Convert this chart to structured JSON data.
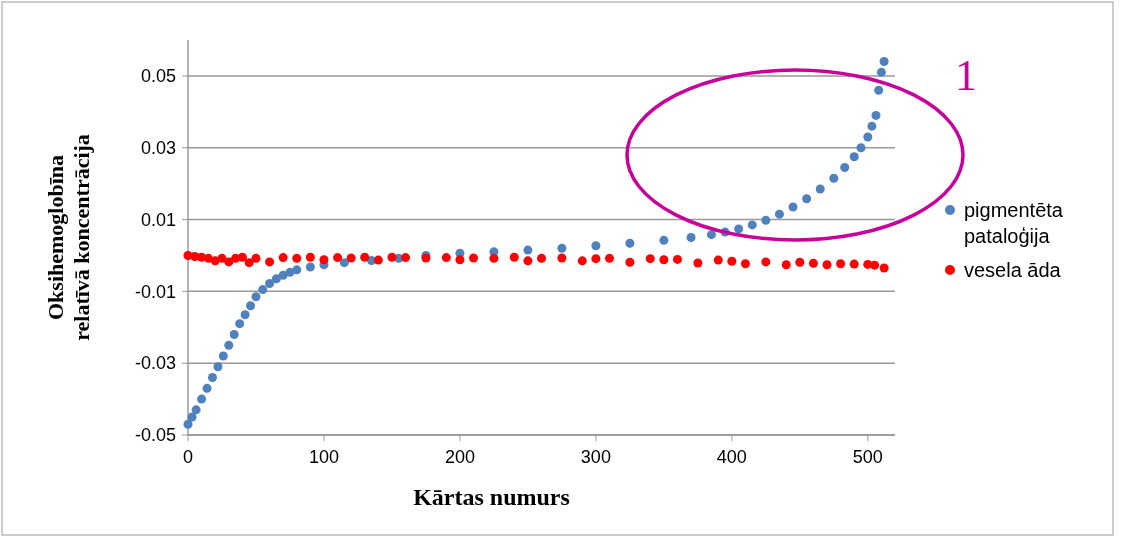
{
  "chart_data": {
    "type": "scatter",
    "xlabel": "Kārtas numurs",
    "ylabel": "Oksihemoglobīna relatīvā koncentrācija",
    "xlim": [
      0,
      520
    ],
    "ylim": [
      -0.05,
      0.06
    ],
    "xticks": [
      0,
      100,
      200,
      300,
      400,
      500
    ],
    "yticks": [
      0.05,
      0.03,
      0.01,
      -0.01,
      -0.03,
      -0.05
    ],
    "grid": "y",
    "legend": "right",
    "marker": "circle",
    "annotations": [
      "1"
    ],
    "series": [
      {
        "name": "pigmentēta pataloģija",
        "color": "#4f81bd",
        "x": [
          0,
          3,
          6,
          10,
          14,
          18,
          22,
          26,
          30,
          34,
          38,
          42,
          46,
          50,
          55,
          60,
          65,
          70,
          75,
          80,
          90,
          100,
          115,
          135,
          155,
          175,
          200,
          225,
          250,
          275,
          300,
          325,
          350,
          370,
          385,
          395,
          405,
          415,
          425,
          435,
          445,
          455,
          465,
          475,
          483,
          490,
          495,
          500,
          503,
          506,
          508,
          510,
          512
        ],
        "values": [
          -0.047,
          -0.045,
          -0.043,
          -0.04,
          -0.037,
          -0.034,
          -0.031,
          -0.028,
          -0.025,
          -0.022,
          -0.019,
          -0.0165,
          -0.014,
          -0.0115,
          -0.0095,
          -0.0078,
          -0.0065,
          -0.0055,
          -0.0047,
          -0.004,
          -0.0032,
          -0.0026,
          -0.002,
          -0.0014,
          -0.0008,
          0,
          0.0006,
          0.001,
          0.0015,
          0.002,
          0.0027,
          0.0034,
          0.0042,
          0.005,
          0.0058,
          0.0065,
          0.0074,
          0.0085,
          0.0098,
          0.0115,
          0.0135,
          0.0158,
          0.0185,
          0.0215,
          0.0245,
          0.0275,
          0.03,
          0.033,
          0.036,
          0.039,
          0.046,
          0.051,
          0.054
        ]
      },
      {
        "name": "vesela āda",
        "color": "#ff0000",
        "x": [
          0,
          5,
          10,
          15,
          20,
          25,
          30,
          35,
          40,
          45,
          50,
          60,
          70,
          80,
          90,
          100,
          110,
          120,
          130,
          140,
          150,
          160,
          175,
          190,
          200,
          210,
          225,
          240,
          250,
          260,
          275,
          290,
          300,
          310,
          325,
          340,
          350,
          360,
          375,
          390,
          400,
          410,
          425,
          440,
          450,
          460,
          470,
          480,
          490,
          500,
          505,
          512
        ],
        "values": [
          0,
          -0.0003,
          -0.0005,
          -0.0008,
          -0.0015,
          -0.0008,
          -0.0018,
          -0.0008,
          -0.0005,
          -0.002,
          -0.0008,
          -0.0018,
          -0.0006,
          -0.0008,
          -0.0005,
          -0.0012,
          -0.0006,
          -0.0007,
          -0.0005,
          -0.0013,
          -0.0005,
          -0.0006,
          -0.0007,
          -0.0006,
          -0.0012,
          -0.0007,
          -0.0008,
          -0.0005,
          -0.0015,
          -0.0008,
          -0.0007,
          -0.0015,
          -0.0009,
          -0.0008,
          -0.0019,
          -0.0009,
          -0.0012,
          -0.0011,
          -0.0021,
          -0.0013,
          -0.0016,
          -0.0023,
          -0.0018,
          -0.0026,
          -0.0019,
          -0.0022,
          -0.0026,
          -0.0023,
          -0.0024,
          -0.0025,
          -0.0027,
          -0.0035
        ]
      }
    ]
  }
}
